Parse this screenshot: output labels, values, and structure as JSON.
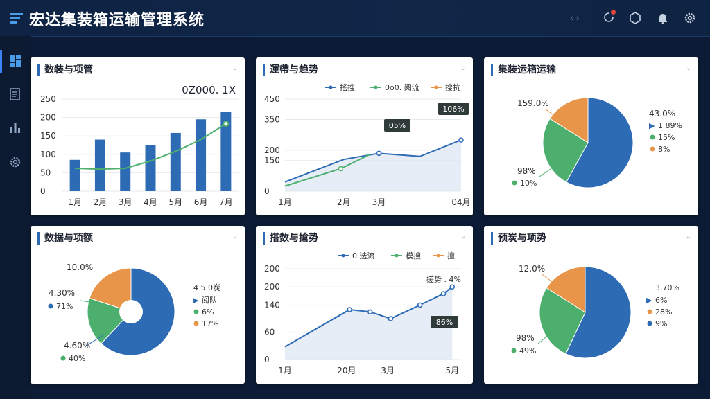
{
  "app": {
    "title": "宏达集装箱运输管理系统"
  },
  "topbar": {
    "icons": [
      "expand-icon",
      "notification-icon",
      "shield-icon",
      "bell-icon",
      "settings-icon"
    ],
    "expand_text": "‹ ›"
  },
  "sidebar": {
    "items": [
      {
        "icon": "dashboard-icon"
      },
      {
        "icon": "document-icon"
      },
      {
        "icon": "bar-chart-icon"
      },
      {
        "icon": "settings-icon"
      }
    ]
  },
  "colors": {
    "blue": "#2e6bb5",
    "green": "#4caf6e",
    "orange": "#e8954a",
    "bg": "#0d1c36"
  },
  "cards": {
    "c1": {
      "title": "数装与项管",
      "menu": "⌄",
      "value_label": "0Z000. 1Х"
    },
    "c2": {
      "title": "運帶与趋势",
      "menu": "⌄"
    },
    "c3": {
      "title": "集装运箱运输",
      "menu": "⌄"
    },
    "c4": {
      "title": "数据与项额",
      "menu": "⌄"
    },
    "c5": {
      "title": "搭数与搶势",
      "menu": "⌄"
    },
    "c6": {
      "title": "预炭与项势",
      "menu": "⌄"
    }
  },
  "chart_data": [
    {
      "type": "bar",
      "title": "数装与项管",
      "categories": [
        "1月",
        "2月",
        "3月",
        "4月",
        "5月",
        "6月",
        "7月"
      ],
      "series": [
        {
          "type": "bar",
          "values": [
            85,
            140,
            105,
            125,
            158,
            195,
            215
          ]
        },
        {
          "type": "line",
          "values": [
            62,
            60,
            62,
            82,
            108,
            140,
            183
          ]
        }
      ],
      "yticks": [
        "250",
        "200",
        "150",
        "100",
        "50",
        "0"
      ],
      "ylim": [
        0,
        250
      ],
      "annotation": "0Z000. 1Х"
    },
    {
      "type": "line",
      "title": "運帶与趋势",
      "x_labels": [
        "1月",
        "2月",
        "3月",
        "04月"
      ],
      "yticks": [
        "450",
        "350",
        "200",
        "150",
        "0"
      ],
      "legend": [
        "搖搜",
        "0o0. 阅流",
        "搜抗"
      ],
      "series": [
        {
          "name": "搖搜",
          "points": [
            [
              0,
              45
            ],
            [
              1,
              155
            ],
            [
              1.6,
              185
            ],
            [
              2.3,
              170
            ],
            [
              3,
              250
            ]
          ],
          "color": "#2e6bb5"
        },
        {
          "name": "0o0. 阅流",
          "points": [
            [
              0,
              25
            ],
            [
              0.95,
              110
            ],
            [
              1.45,
              180
            ]
          ],
          "color": "#4caf6e"
        }
      ],
      "annotations": [
        "05%",
        "106%"
      ]
    },
    {
      "type": "pie",
      "title": "集装运箱运输",
      "slices": [
        {
          "label": "",
          "value": 58,
          "color": "#2e6bb5"
        },
        {
          "label": "",
          "value": 26,
          "color": "#4caf6e"
        },
        {
          "label": "",
          "value": 16,
          "color": "#e8954a"
        }
      ],
      "callouts": [
        "159.0%",
        "43.0%",
        "98%"
      ],
      "legend": [
        {
          "label": "1 89%",
          "marker": "arrow",
          "color": "#2e6bb5"
        },
        {
          "label": "15%",
          "color": "#4caf6e"
        },
        {
          "label": "8%",
          "color": "#e8954a"
        },
        {
          "label": "10%",
          "color": "#4caf6e"
        }
      ]
    },
    {
      "type": "donut",
      "title": "数据与项额",
      "slices": [
        {
          "label": "",
          "value": 62,
          "color": "#2e6bb5"
        },
        {
          "label": "",
          "value": 18,
          "color": "#4caf6e"
        },
        {
          "label": "",
          "value": 20,
          "color": "#e8954a"
        }
      ],
      "callouts": [
        "10.0%",
        "4.30%",
        "4.60%"
      ],
      "legend": [
        {
          "label": "71%",
          "color": "#2e6bb5"
        },
        {
          "label": "40%",
          "color": "#4caf6e"
        },
        {
          "label": "4 5 0炭",
          "color": ""
        },
        {
          "label": "阅队",
          "marker": "arrow",
          "color": "#2e6bb5"
        },
        {
          "label": "6%",
          "color": "#4caf6e"
        },
        {
          "label": "17%",
          "color": "#e8954a"
        }
      ]
    },
    {
      "type": "line",
      "title": "搭数与搶势",
      "x_labels": [
        "1月",
        "20月",
        "3月",
        "5月"
      ],
      "yticks": [
        "200",
        "200",
        "140",
        "60",
        "0"
      ],
      "legend": [
        "0.迭流",
        "模搜",
        "擅"
      ],
      "series": [
        {
          "name": "0.迭流",
          "points": [
            [
              0,
              28
            ],
            [
              1.1,
              110
            ],
            [
              1.45,
              105
            ],
            [
              1.8,
              90
            ],
            [
              2.3,
              120
            ],
            [
              2.7,
              145
            ],
            [
              2.85,
              160
            ]
          ],
          "color": "#2e6bb5"
        }
      ],
      "annotations": [
        "搓势 . 4%",
        "86%"
      ]
    },
    {
      "type": "pie",
      "title": "预炭与项势",
      "slices": [
        {
          "label": "",
          "value": 57,
          "color": "#2e6bb5"
        },
        {
          "label": "",
          "value": 27,
          "color": "#4caf6e"
        },
        {
          "label": "",
          "value": 16,
          "color": "#e8954a"
        }
      ],
      "callouts": [
        "12.0%",
        "98%"
      ],
      "legend": [
        {
          "label": "3.70%",
          "color": ""
        },
        {
          "label": "6%",
          "marker": "arrow",
          "color": "#2e6bb5"
        },
        {
          "label": "28%",
          "color": "#e8954a"
        },
        {
          "label": "9%",
          "color": "#2e6bb5"
        },
        {
          "label": "49%",
          "color": "#4caf6e"
        }
      ]
    }
  ]
}
